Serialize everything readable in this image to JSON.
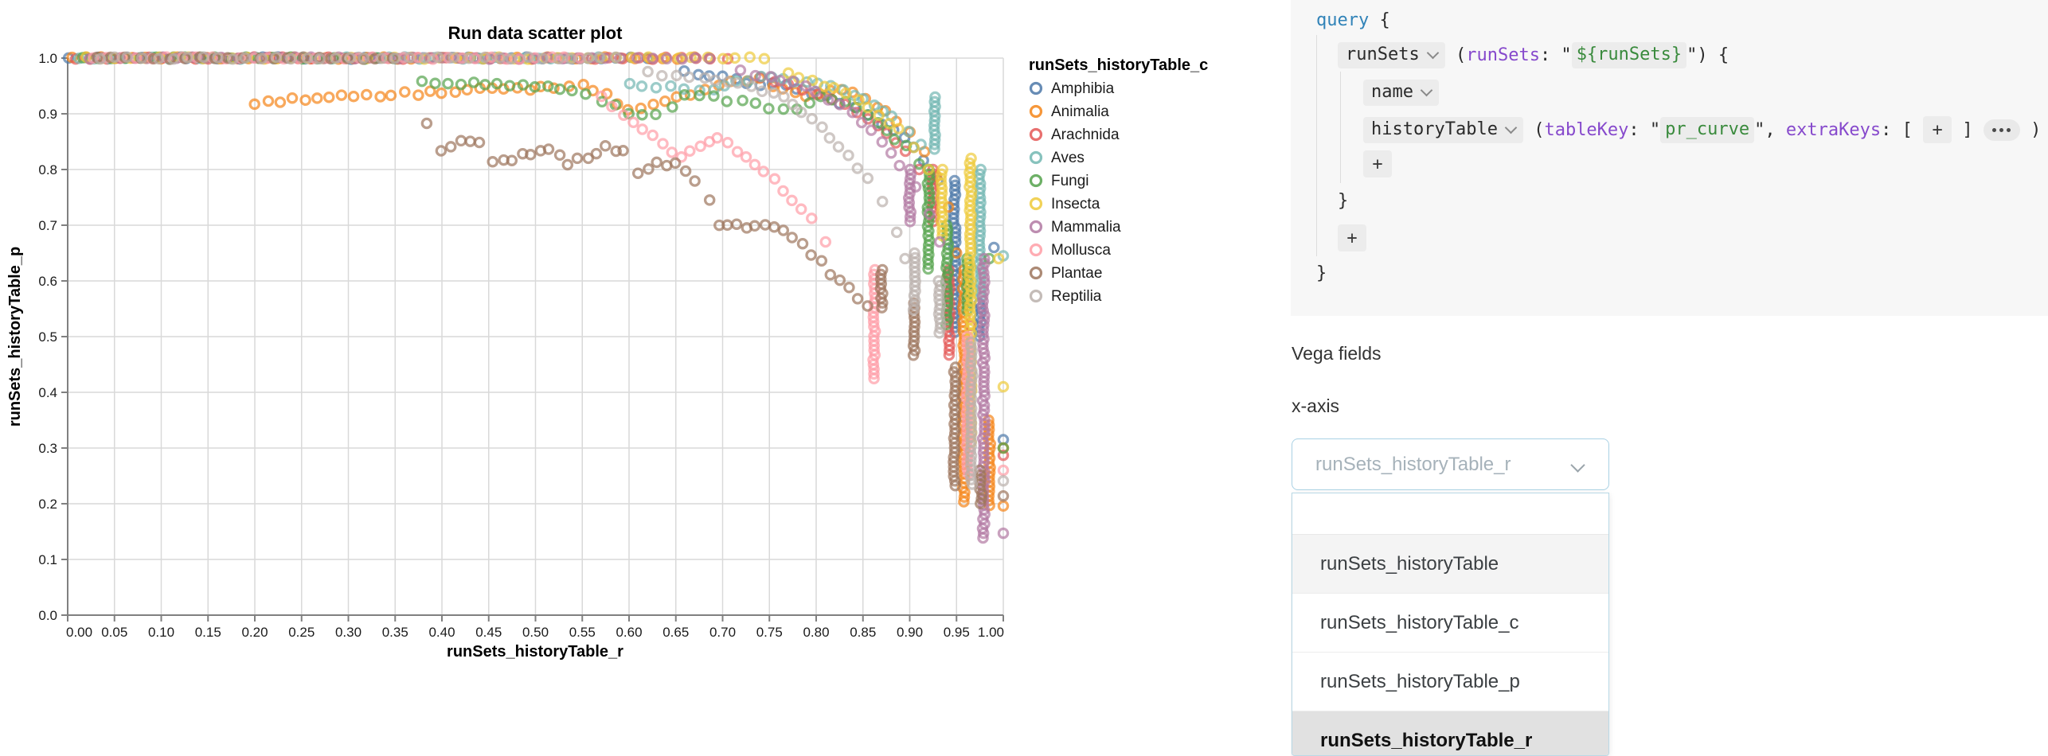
{
  "colors": {
    "accent_border": "#a9d1e4",
    "panel_bg": "#f7f7f7",
    "chip_bg": "#ececec",
    "keyword_blue": "#3183b8",
    "attr_purple": "#8649cc",
    "string_green": "#398a3c"
  },
  "chart_data": {
    "type": "scatter",
    "title": "Run data scatter plot",
    "xlabel": "runSets_historyTable_r",
    "ylabel": "runSets_historyTable_p",
    "legend_title": "runSets_historyTable_c",
    "xlim": [
      0,
      1
    ],
    "ylim": [
      0,
      1
    ],
    "x_tick_labels": [
      "0.00",
      "0.05",
      "0.10",
      "0.15",
      "0.20",
      "0.25",
      "0.30",
      "0.35",
      "0.40",
      "0.45",
      "0.50",
      "0.55",
      "0.60",
      "0.65",
      "0.70",
      "0.75",
      "0.80",
      "0.85",
      "0.90",
      "0.95",
      "1.00"
    ],
    "y_tick_labels": [
      "0.0",
      "0.1",
      "0.2",
      "0.3",
      "0.4",
      "0.5",
      "0.6",
      "0.7",
      "0.8",
      "0.9",
      "1.0"
    ],
    "grid": true,
    "legend_position": "right",
    "point_opacity": 0.7,
    "series": [
      {
        "name": "Amphibia",
        "color": "#4c78a8",
        "top_row_end": 0.63,
        "curve": [
          [
            0.66,
            0.975
          ],
          [
            0.7,
            0.965
          ],
          [
            0.74,
            0.955
          ],
          [
            0.78,
            0.945
          ],
          [
            0.81,
            0.93
          ],
          [
            0.84,
            0.91
          ],
          [
            0.87,
            0.885
          ],
          [
            0.895,
            0.855
          ],
          [
            0.915,
            0.82
          ],
          [
            0.93,
            0.78
          ]
        ],
        "columns": [
          [
            0.948,
            0.78,
            0.5
          ],
          [
            0.975,
            0.56,
            0.5
          ]
        ],
        "dots": [
          [
            1.0,
            0.315
          ],
          [
            0.99,
            0.66
          ]
        ]
      },
      {
        "name": "Animalia",
        "color": "#f58518",
        "top_row_end": 0.7,
        "curve": [
          [
            0.2,
            0.918
          ],
          [
            0.24,
            0.925
          ],
          [
            0.28,
            0.93
          ],
          [
            0.32,
            0.933
          ],
          [
            0.36,
            0.936
          ],
          [
            0.4,
            0.94
          ],
          [
            0.44,
            0.943
          ],
          [
            0.48,
            0.945
          ],
          [
            0.52,
            0.947
          ],
          [
            0.55,
            0.95
          ],
          [
            0.575,
            0.935
          ],
          [
            0.6,
            0.905
          ],
          [
            0.625,
            0.915
          ],
          [
            0.65,
            0.93
          ],
          [
            0.68,
            0.945
          ],
          [
            0.71,
            0.955
          ],
          [
            0.74,
            0.96
          ],
          [
            0.765,
            0.945
          ],
          [
            0.79,
            0.93
          ],
          [
            0.815,
            0.945
          ],
          [
            0.84,
            0.935
          ],
          [
            0.865,
            0.915
          ],
          [
            0.885,
            0.89
          ],
          [
            0.9,
            0.865
          ],
          [
            0.915,
            0.83
          ],
          [
            0.928,
            0.79
          ],
          [
            0.94,
            0.73
          ],
          [
            0.95,
            0.65
          ]
        ],
        "columns": [
          [
            0.958,
            0.62,
            0.2
          ],
          [
            0.985,
            0.35,
            0.19
          ]
        ],
        "dots": [
          [
            1.0,
            0.196
          ],
          [
            1.0,
            0.3
          ]
        ]
      },
      {
        "name": "Arachnida",
        "color": "#e45756",
        "top_row_end": 0.72,
        "curve": [
          [
            0.74,
            0.965
          ],
          [
            0.77,
            0.95
          ],
          [
            0.8,
            0.935
          ],
          [
            0.83,
            0.915
          ],
          [
            0.855,
            0.89
          ],
          [
            0.875,
            0.865
          ],
          [
            0.895,
            0.835
          ],
          [
            0.91,
            0.8
          ]
        ],
        "columns": [
          [
            0.925,
            0.8,
            0.7
          ],
          [
            0.942,
            0.62,
            0.46
          ]
        ],
        "dots": [
          [
            1.0,
            0.287
          ],
          [
            0.965,
            0.52
          ]
        ]
      },
      {
        "name": "Aves",
        "color": "#72b7b2",
        "top_row_end": 0.58,
        "curve": [
          [
            0.6,
            0.955
          ],
          [
            0.63,
            0.95
          ],
          [
            0.66,
            0.945
          ],
          [
            0.69,
            0.94
          ],
          [
            0.715,
            0.955
          ],
          [
            0.74,
            0.965
          ],
          [
            0.765,
            0.96
          ],
          [
            0.79,
            0.955
          ],
          [
            0.815,
            0.95
          ],
          [
            0.84,
            0.935
          ],
          [
            0.862,
            0.915
          ],
          [
            0.882,
            0.895
          ],
          [
            0.9,
            0.87
          ],
          [
            0.912,
            0.845
          ]
        ],
        "columns": [
          [
            0.927,
            0.93,
            0.83
          ],
          [
            0.975,
            0.8,
            0.565
          ]
        ],
        "dots": [
          [
            1.0,
            0.645
          ]
        ]
      },
      {
        "name": "Fungi",
        "color": "#54a24b",
        "top_row_end": 0.36,
        "curve": [
          [
            0.38,
            0.955
          ],
          [
            0.42,
            0.952
          ],
          [
            0.46,
            0.955
          ],
          [
            0.5,
            0.948
          ],
          [
            0.54,
            0.942
          ],
          [
            0.57,
            0.925
          ],
          [
            0.6,
            0.9
          ],
          [
            0.63,
            0.895
          ],
          [
            0.66,
            0.935
          ],
          [
            0.69,
            0.93
          ],
          [
            0.72,
            0.92
          ],
          [
            0.75,
            0.912
          ],
          [
            0.78,
            0.905
          ],
          [
            0.805,
            0.93
          ],
          [
            0.83,
            0.92
          ],
          [
            0.855,
            0.895
          ],
          [
            0.875,
            0.87
          ],
          [
            0.895,
            0.84
          ],
          [
            0.91,
            0.81
          ]
        ],
        "columns": [
          [
            0.92,
            0.8,
            0.62
          ],
          [
            0.94,
            0.7,
            0.52
          ],
          [
            0.962,
            0.64,
            0.545
          ]
        ],
        "dots": [
          [
            1.0,
            0.3
          ],
          [
            0.985,
            0.64
          ]
        ]
      },
      {
        "name": "Insecta",
        "color": "#eeca3b",
        "top_row_end": 0.75,
        "curve": [
          [
            0.77,
            0.97
          ],
          [
            0.795,
            0.96
          ],
          [
            0.82,
            0.945
          ],
          [
            0.845,
            0.925
          ],
          [
            0.868,
            0.9
          ],
          [
            0.888,
            0.87
          ],
          [
            0.905,
            0.84
          ],
          [
            0.92,
            0.8
          ]
        ],
        "columns": [
          [
            0.934,
            0.8,
            0.68
          ],
          [
            0.965,
            0.82,
            0.31
          ]
        ],
        "dots": [
          [
            1.0,
            0.41
          ],
          [
            0.995,
            0.64
          ]
        ]
      },
      {
        "name": "Mammalia",
        "color": "#b279a2",
        "top_row_end": 0.7,
        "curve": [
          [
            0.72,
            0.975
          ],
          [
            0.75,
            0.965
          ],
          [
            0.775,
            0.955
          ],
          [
            0.8,
            0.94
          ],
          [
            0.825,
            0.915
          ],
          [
            0.85,
            0.885
          ],
          [
            0.87,
            0.85
          ],
          [
            0.89,
            0.81
          ],
          [
            0.905,
            0.77
          ],
          [
            0.92,
            0.72
          ],
          [
            0.932,
            0.67
          ]
        ],
        "columns": [
          [
            0.9,
            0.8,
            0.7
          ],
          [
            0.979,
            0.64,
            0.137
          ]
        ],
        "dots": [
          [
            1.0,
            0.147
          ]
        ]
      },
      {
        "name": "Mollusca",
        "color": "#ff9da6",
        "top_row_end": 0.55,
        "curve": [
          [
            0.57,
            0.93
          ],
          [
            0.595,
            0.9
          ],
          [
            0.615,
            0.87
          ],
          [
            0.635,
            0.845
          ],
          [
            0.655,
            0.82
          ],
          [
            0.675,
            0.845
          ],
          [
            0.695,
            0.855
          ],
          [
            0.715,
            0.835
          ],
          [
            0.735,
            0.81
          ],
          [
            0.755,
            0.78
          ],
          [
            0.775,
            0.745
          ],
          [
            0.795,
            0.71
          ],
          [
            0.81,
            0.67
          ]
        ],
        "columns": [
          [
            0.862,
            0.62,
            0.42
          ],
          [
            0.962,
            0.5,
            0.247
          ]
        ],
        "dots": [
          [
            1.0,
            0.26
          ]
        ]
      },
      {
        "name": "Plantae",
        "color": "#9d755d",
        "top_row_end": 0.36,
        "curve": [
          [
            0.385,
            0.885
          ],
          [
            0.4,
            0.832
          ],
          [
            0.42,
            0.85
          ],
          [
            0.44,
            0.852
          ],
          [
            0.455,
            0.812
          ],
          [
            0.475,
            0.82
          ],
          [
            0.495,
            0.83
          ],
          [
            0.515,
            0.836
          ],
          [
            0.535,
            0.812
          ],
          [
            0.555,
            0.822
          ],
          [
            0.575,
            0.84
          ],
          [
            0.595,
            0.83
          ],
          [
            0.61,
            0.795
          ],
          [
            0.63,
            0.81
          ],
          [
            0.65,
            0.808
          ],
          [
            0.67,
            0.78
          ],
          [
            0.685,
            0.745
          ],
          [
            0.695,
            0.7
          ],
          [
            0.715,
            0.698
          ],
          [
            0.735,
            0.695
          ],
          [
            0.755,
            0.7
          ],
          [
            0.775,
            0.68
          ],
          [
            0.795,
            0.65
          ],
          [
            0.815,
            0.615
          ],
          [
            0.835,
            0.585
          ],
          [
            0.855,
            0.555
          ]
        ],
        "columns": [
          [
            0.87,
            0.62,
            0.55
          ],
          [
            0.905,
            0.56,
            0.46
          ],
          [
            0.948,
            0.445,
            0.23
          ],
          [
            0.976,
            0.26,
            0.198
          ]
        ],
        "dots": [
          [
            1.0,
            0.214
          ]
        ]
      },
      {
        "name": "Reptilia",
        "color": "#bab0ac",
        "top_row_end": 0.6,
        "curve": [
          [
            0.62,
            0.975
          ],
          [
            0.65,
            0.968
          ],
          [
            0.68,
            0.962
          ],
          [
            0.705,
            0.955
          ],
          [
            0.73,
            0.948
          ],
          [
            0.755,
            0.94
          ],
          [
            0.775,
            0.915
          ],
          [
            0.795,
            0.89
          ],
          [
            0.815,
            0.86
          ],
          [
            0.835,
            0.825
          ],
          [
            0.855,
            0.785
          ],
          [
            0.872,
            0.74
          ],
          [
            0.885,
            0.69
          ],
          [
            0.895,
            0.64
          ]
        ],
        "columns": [
          [
            0.905,
            0.65,
            0.545
          ],
          [
            0.932,
            0.6,
            0.5
          ],
          [
            0.966,
            0.49,
            0.233
          ]
        ],
        "dots": [
          [
            1.0,
            0.241
          ]
        ]
      }
    ]
  },
  "panel": {
    "query_editor": {
      "lines": [
        {
          "indent": 0,
          "tokens": [
            {
              "t": "kw",
              "v": "query"
            },
            {
              "t": "p",
              "v": " {"
            }
          ]
        },
        {
          "indent": 1,
          "tokens": [
            {
              "t": "chip",
              "v": "runSets"
            },
            {
              "t": "p",
              "v": " ("
            },
            {
              "t": "attr",
              "v": "runSets"
            },
            {
              "t": "p",
              "v": ": \""
            },
            {
              "t": "str",
              "v": "${runSets}"
            },
            {
              "t": "p",
              "v": "\") {"
            }
          ]
        },
        {
          "indent": 2,
          "tokens": [
            {
              "t": "chip",
              "v": "name"
            }
          ]
        },
        {
          "indent": 2,
          "tokens": [
            {
              "t": "chip",
              "v": "historyTable"
            },
            {
              "t": "p",
              "v": " ("
            },
            {
              "t": "attr",
              "v": "tableKey"
            },
            {
              "t": "p",
              "v": ": \""
            },
            {
              "t": "str",
              "v": "pr_curve"
            },
            {
              "t": "p",
              "v": "\", "
            },
            {
              "t": "attr",
              "v": "extraKeys"
            },
            {
              "t": "p",
              "v": ": [ "
            },
            {
              "t": "plus"
            },
            {
              "t": "p",
              "v": " ] "
            },
            {
              "t": "dots"
            },
            {
              "t": "p",
              "v": " )"
            }
          ]
        },
        {
          "indent": 2,
          "tokens": [
            {
              "t": "plus"
            }
          ]
        },
        {
          "indent": 1,
          "tokens": [
            {
              "t": "p",
              "v": "}"
            }
          ]
        },
        {
          "indent": 1,
          "tokens": [
            {
              "t": "plus"
            }
          ]
        },
        {
          "indent": 0,
          "tokens": [
            {
              "t": "p",
              "v": "}"
            }
          ]
        }
      ]
    },
    "vega_fields_label": "Vega fields",
    "x_axis_label": "x-axis",
    "x_axis_select": {
      "value": "runSets_historyTable_r"
    },
    "dropdown_menu": {
      "search_value": "",
      "options": [
        {
          "label": "runSets_historyTable",
          "state": "hover"
        },
        {
          "label": "runSets_historyTable_c",
          "state": "normal"
        },
        {
          "label": "runSets_historyTable_p",
          "state": "normal"
        },
        {
          "label": "runSets_historyTable_r",
          "state": "selected"
        }
      ]
    }
  }
}
